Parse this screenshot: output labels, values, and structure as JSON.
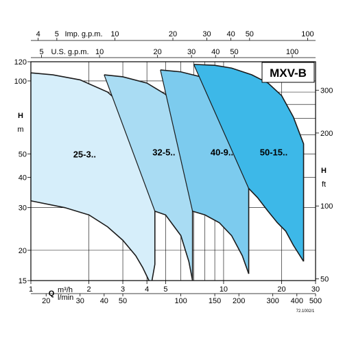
{
  "chart_data": {
    "type": "area",
    "title": "MXV-B",
    "code": "72.1002/1",
    "scale": "log-log",
    "grid": true,
    "xlim_m3h": [
      1,
      30
    ],
    "ylim_m": [
      15,
      120
    ],
    "ylim_ft": [
      50,
      400
    ],
    "colors": {
      "25-3..": "#d6eefa",
      "32-5..": "#a9dcf3",
      "40-9..": "#7ccbee",
      "50-15..": "#3db8e8",
      "edge": "#1a1a1a"
    },
    "axes": {
      "x_m3h": {
        "label_q": "Q",
        "label": "m³/h",
        "ticks": [
          "1",
          "2",
          "3",
          "4",
          "5",
          "10",
          "20",
          "30"
        ],
        "tick_values": [
          1,
          2,
          3,
          4,
          5,
          10,
          20,
          30
        ]
      },
      "x_lmin": {
        "label": "l/min",
        "ticks": [
          "20",
          "30",
          "40",
          "50",
          "100",
          "150",
          "200",
          "300",
          "400",
          "500"
        ],
        "tick_values": [
          20,
          30,
          40,
          50,
          100,
          150,
          200,
          300,
          400,
          500
        ]
      },
      "x_usgpm": {
        "label": "U.S. g.p.m.",
        "ticks": [
          "5",
          "10",
          "20",
          "30",
          "40",
          "50",
          "100"
        ],
        "tick_values": [
          5,
          10,
          20,
          30,
          40,
          50,
          100
        ]
      },
      "x_impgpm": {
        "label": "Imp. g.p.m.",
        "ticks": [
          "4",
          "5",
          "10",
          "20",
          "30",
          "40",
          "50",
          "100"
        ],
        "tick_values": [
          4,
          5,
          10,
          20,
          30,
          40,
          50,
          100
        ]
      },
      "y_m": {
        "label": "H",
        "unit": "m",
        "ticks": [
          "15",
          "20",
          "30",
          "40",
          "50",
          "100",
          "120"
        ],
        "tick_values": [
          15,
          20,
          30,
          40,
          50,
          100,
          120
        ]
      },
      "y_ft": {
        "label": "H",
        "unit": "ft",
        "ticks": [
          "50",
          "100",
          "200",
          "300"
        ],
        "tick_values": [
          50,
          100,
          200,
          300
        ]
      }
    },
    "series": [
      {
        "name": "25-3..",
        "top": [
          [
            1,
            108
          ],
          [
            1.3,
            106
          ],
          [
            1.8,
            101
          ],
          [
            2.5,
            90
          ],
          [
            3,
            79
          ],
          [
            3.5,
            66
          ],
          [
            4,
            55
          ],
          [
            4.2,
            51
          ],
          [
            4.4,
            47
          ]
        ],
        "bottom": [
          [
            1,
            32
          ],
          [
            1.5,
            30
          ],
          [
            2,
            28
          ],
          [
            2.5,
            25
          ],
          [
            3,
            22
          ],
          [
            3.5,
            19
          ],
          [
            3.8,
            17
          ],
          [
            4.1,
            15
          ]
        ],
        "right": [
          [
            4.4,
            47
          ],
          [
            4.4,
            17.5
          ],
          [
            4.25,
            15
          ]
        ]
      },
      {
        "name": "32-5..",
        "top": [
          [
            2.4,
            106
          ],
          [
            3,
            104
          ],
          [
            4,
            98
          ],
          [
            5,
            88
          ],
          [
            6,
            72
          ],
          [
            6.6,
            58
          ],
          [
            6.9,
            48
          ]
        ],
        "bottom": [
          [
            4.4,
            29
          ],
          [
            5,
            28
          ],
          [
            6,
            23
          ],
          [
            6.6,
            18
          ],
          [
            6.9,
            15
          ]
        ],
        "right": [
          [
            6.9,
            48
          ],
          [
            6.9,
            15
          ]
        ]
      },
      {
        "name": "40-9..",
        "top": [
          [
            4.7,
            111
          ],
          [
            6,
            109
          ],
          [
            8,
            103
          ],
          [
            10,
            92
          ],
          [
            11,
            84
          ],
          [
            12.5,
            66
          ],
          [
            13.5,
            52
          ]
        ],
        "bottom": [
          [
            6.9,
            29
          ],
          [
            8,
            28
          ],
          [
            9.5,
            26
          ],
          [
            11,
            23
          ],
          [
            12.5,
            19
          ],
          [
            13.5,
            16
          ]
        ],
        "right": [
          [
            13.5,
            52
          ],
          [
            13.5,
            16
          ]
        ]
      },
      {
        "name": "50-15..",
        "top": [
          [
            7,
            117
          ],
          [
            9,
            116
          ],
          [
            11,
            113
          ],
          [
            14,
            106
          ],
          [
            17,
            98
          ],
          [
            20,
            87
          ],
          [
            23,
            71
          ],
          [
            26,
            55
          ]
        ],
        "bottom": [
          [
            13.5,
            36
          ],
          [
            15,
            33
          ],
          [
            17,
            29
          ],
          [
            19,
            26
          ],
          [
            21,
            24
          ],
          [
            23,
            21
          ],
          [
            26,
            18
          ]
        ],
        "right": [
          [
            26,
            55
          ],
          [
            26,
            18
          ]
        ]
      }
    ]
  }
}
